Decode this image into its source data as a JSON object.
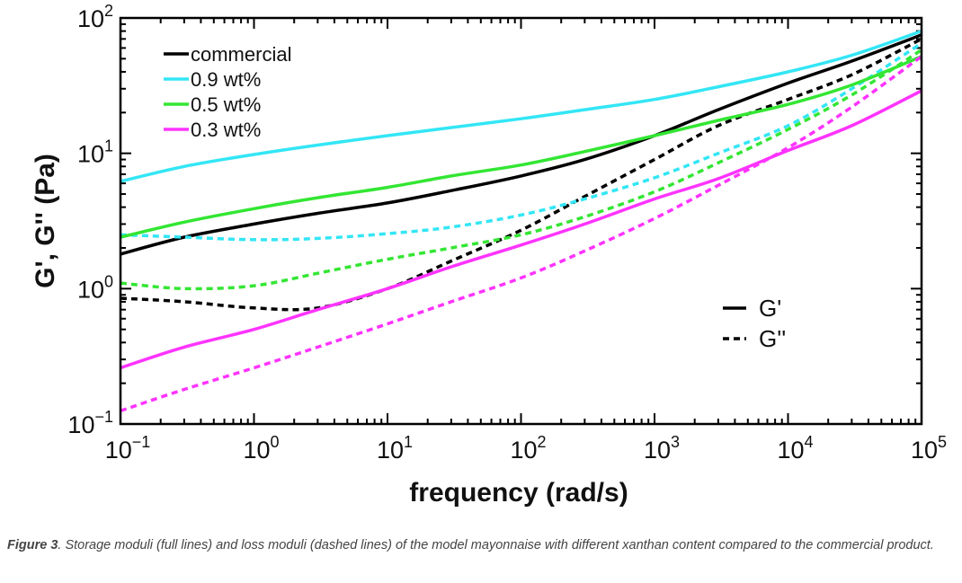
{
  "chart_data": {
    "type": "line",
    "xscale": "log",
    "yscale": "log",
    "xlim": [
      0.1,
      100000
    ],
    "ylim": [
      0.1,
      100
    ],
    "xlabel": "frequency (rad/s)",
    "ylabel": "G', G'' (Pa)",
    "x_ticks": [
      {
        "base": "10",
        "exp": "−1"
      },
      {
        "base": "10",
        "exp": "0"
      },
      {
        "base": "10",
        "exp": "1"
      },
      {
        "base": "10",
        "exp": "2"
      },
      {
        "base": "10",
        "exp": "3"
      },
      {
        "base": "10",
        "exp": "4"
      },
      {
        "base": "10",
        "exp": "5"
      }
    ],
    "y_ticks": [
      {
        "base": "10",
        "exp": "−1"
      },
      {
        "base": "10",
        "exp": "0"
      },
      {
        "base": "10",
        "exp": "1"
      },
      {
        "base": "10",
        "exp": "2"
      }
    ],
    "x": [
      0.1,
      0.3,
      1,
      3,
      10,
      30,
      100,
      300,
      1000,
      3000,
      10000,
      30000,
      100000
    ],
    "legend_position": "top-left",
    "style_legend": [
      {
        "style": "solid",
        "label": "G'"
      },
      {
        "style": "dashed",
        "label": "G''"
      }
    ],
    "series": [
      {
        "name": "commercial",
        "color": "#000000",
        "modulus": "G'",
        "values": [
          1.8,
          2.4,
          3.0,
          3.6,
          4.3,
          5.3,
          6.8,
          9.0,
          13.5,
          21,
          33,
          48,
          75
        ]
      },
      {
        "name": "commercial",
        "color": "#000000",
        "modulus": "G''",
        "values": [
          0.85,
          0.8,
          0.72,
          0.72,
          1.0,
          1.6,
          2.7,
          4.8,
          9.0,
          16,
          25,
          38,
          70
        ]
      },
      {
        "name": "0.9 wt%",
        "color": "#33e6f5",
        "modulus": "G'",
        "values": [
          6.2,
          8.0,
          9.8,
          11.5,
          13.5,
          15.5,
          18,
          21,
          25,
          31,
          40,
          53,
          80
        ]
      },
      {
        "name": "0.9 wt%",
        "color": "#33e6f5",
        "modulus": "G''",
        "values": [
          2.5,
          2.4,
          2.3,
          2.35,
          2.55,
          2.85,
          3.5,
          4.6,
          6.6,
          10,
          16,
          30,
          65
        ]
      },
      {
        "name": "0.5 wt%",
        "color": "#33e633",
        "modulus": "G'",
        "values": [
          2.4,
          3.1,
          3.9,
          4.7,
          5.6,
          6.8,
          8.2,
          10.3,
          13.5,
          17.5,
          23,
          32,
          52
        ]
      },
      {
        "name": "0.5 wt%",
        "color": "#33e633",
        "modulus": "G''",
        "values": [
          1.1,
          1.0,
          1.05,
          1.3,
          1.65,
          2.0,
          2.5,
          3.4,
          5.2,
          8.5,
          15,
          27,
          58
        ]
      },
      {
        "name": "0.3 wt%",
        "color": "#ff33ff",
        "modulus": "G'",
        "values": [
          0.26,
          0.37,
          0.5,
          0.7,
          1.0,
          1.45,
          2.1,
          3.0,
          4.6,
          6.5,
          10.5,
          16,
          29
        ]
      },
      {
        "name": "0.3 wt%",
        "color": "#ff33ff",
        "modulus": "G''",
        "values": [
          0.125,
          0.18,
          0.26,
          0.37,
          0.55,
          0.8,
          1.2,
          1.9,
          3.3,
          5.8,
          11,
          22,
          52
        ]
      }
    ]
  },
  "caption": {
    "label": "Figure 3",
    "text": ". Storage moduli (full lines) and loss moduli (dashed lines) of the model mayonnaise with different xanthan content compared to the commercial product."
  }
}
